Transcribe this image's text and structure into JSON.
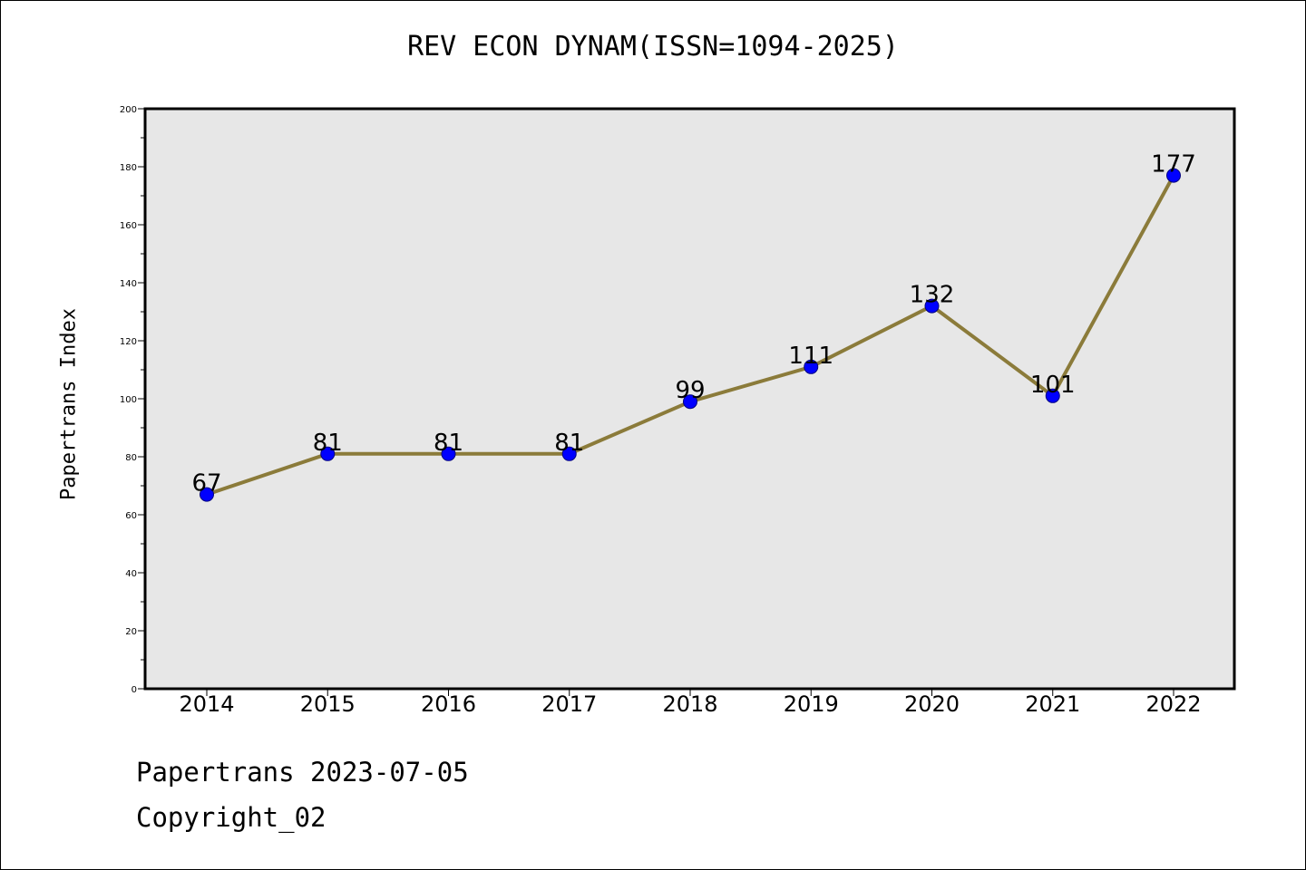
{
  "colors": {
    "plot_bg": "#e7e7e7",
    "line": "#8b7b3a",
    "marker": "#0000ff",
    "marker_edge": "#000080",
    "axes": "#000000"
  },
  "chart_data": {
    "type": "line",
    "title": "REV ECON DYNAM(ISSN=1094-2025)",
    "xlabel": "",
    "ylabel": "Papertrans Index",
    "categories": [
      "2014",
      "2015",
      "2016",
      "2017",
      "2018",
      "2019",
      "2020",
      "2021",
      "2022"
    ],
    "values": [
      67,
      81,
      81,
      81,
      99,
      111,
      132,
      101,
      177
    ],
    "ylim": [
      0,
      200
    ],
    "yticks": [
      0,
      20,
      40,
      60,
      80,
      100,
      120,
      140,
      160,
      180,
      200
    ],
    "yticks_minor_step": 10,
    "grid": false,
    "legend": "none",
    "data_labels": true
  },
  "footer": {
    "line1": "Papertrans 2023-07-05",
    "line2": "Copyright_02"
  }
}
